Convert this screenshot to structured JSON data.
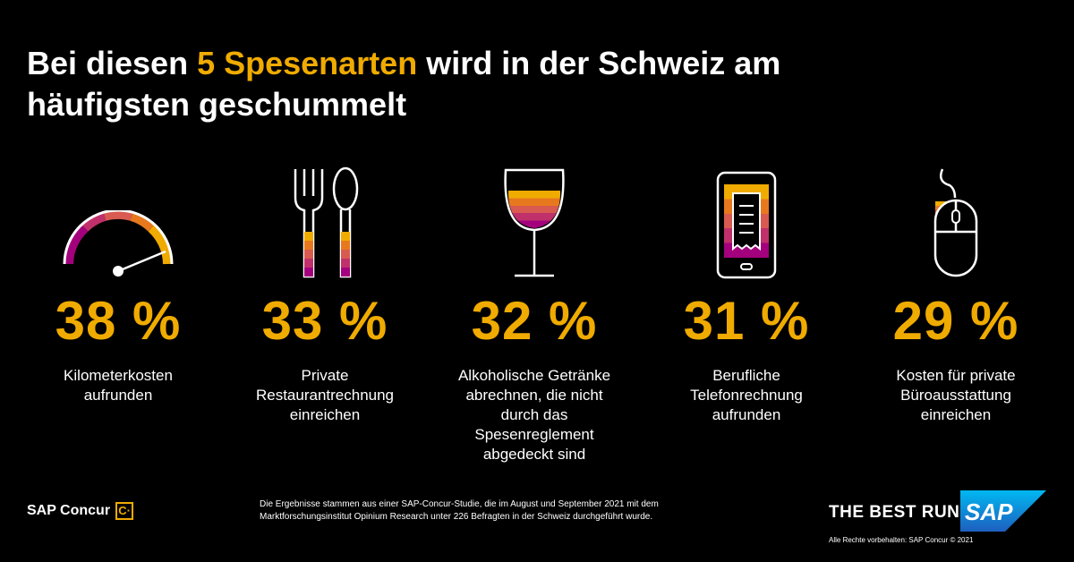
{
  "title": {
    "prefix": "Bei diesen ",
    "highlight": "5 Spesenarten",
    "suffix": " wird in der Schweiz am häufigsten geschummelt"
  },
  "colors": {
    "accent": "#f0ab00",
    "magenta": "#a4007d",
    "orange": "#e35500",
    "background": "#000000"
  },
  "items": [
    {
      "icon": "speedometer-icon",
      "percent": "38 %",
      "label": "Kilometerkosten\naufrunden"
    },
    {
      "icon": "fork-spoon-icon",
      "percent": "33 %",
      "label": "Private\nRestaurantrechnung\neinreichen"
    },
    {
      "icon": "wine-glass-icon",
      "percent": "32 %",
      "label": "Alkoholische Getränke\nabrechnen, die nicht\ndurch das\nSpesenreglement\nabgedeckt sind"
    },
    {
      "icon": "smartphone-receipt-icon",
      "percent": "31 %",
      "label": "Berufliche\nTelefonrechnung\naufrunden"
    },
    {
      "icon": "computer-mouse-icon",
      "percent": "29 %",
      "label": "Kosten für private\nBüroausstattung\neinreichen"
    }
  ],
  "footer": {
    "brand": "SAP Concur",
    "brand_mark": "C·",
    "note_line1": "Die  Ergebnisse stammen aus einer SAP-Concur-Studie, die im August und September 2021 mit dem",
    "note_line2": "Marktforschungsinstitut Opinium Research unter 226 Befragten in der Schweiz durchgeführt wurde.",
    "slogan": "THE BEST RUN",
    "sap_logo": "SAP",
    "copyright": "Alle Rechte vorbehalten: SAP Concur © 2021"
  }
}
